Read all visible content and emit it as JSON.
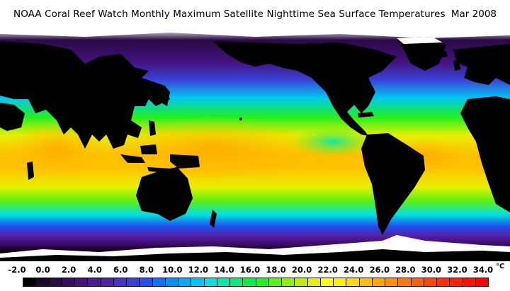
{
  "header": {
    "title": "NOAA Coral Reef Watch Monthly Maximum Satellite Nighttime Sea Surface Temperatures",
    "date": "Mar 2008"
  },
  "legend": {
    "unit": "°C",
    "tick_labels": [
      "-2.0",
      "0.0",
      "2.0",
      "4.0",
      "6.0",
      "8.0",
      "10.0",
      "12.0",
      "14.0",
      "16.0",
      "18.0",
      "20.0",
      "22.0",
      "24.0",
      "26.0",
      "28.0",
      "30.0",
      "32.0",
      "34.0"
    ],
    "colors": [
      "#000000",
      "#1a0a2a",
      "#2a0a45",
      "#3a0a60",
      "#44107a",
      "#4e1a90",
      "#5520a8",
      "#4a30c0",
      "#3a40d8",
      "#2050f0",
      "#1070ff",
      "#0090ff",
      "#00aaff",
      "#00c8f0",
      "#00e0e0",
      "#00e8b0",
      "#00ee80",
      "#00f050",
      "#20f020",
      "#60f010",
      "#90f000",
      "#c0f000",
      "#e8f000",
      "#ffff00",
      "#fff000",
      "#ffd800",
      "#ffc000",
      "#ffa800",
      "#ff9000",
      "#ff7800",
      "#ff6000",
      "#ff4800",
      "#ff3000",
      "#ff2000",
      "#ff1000",
      "#ff0000"
    ]
  },
  "map": {
    "land_color": "#000000",
    "ice_color": "#ffffff"
  }
}
